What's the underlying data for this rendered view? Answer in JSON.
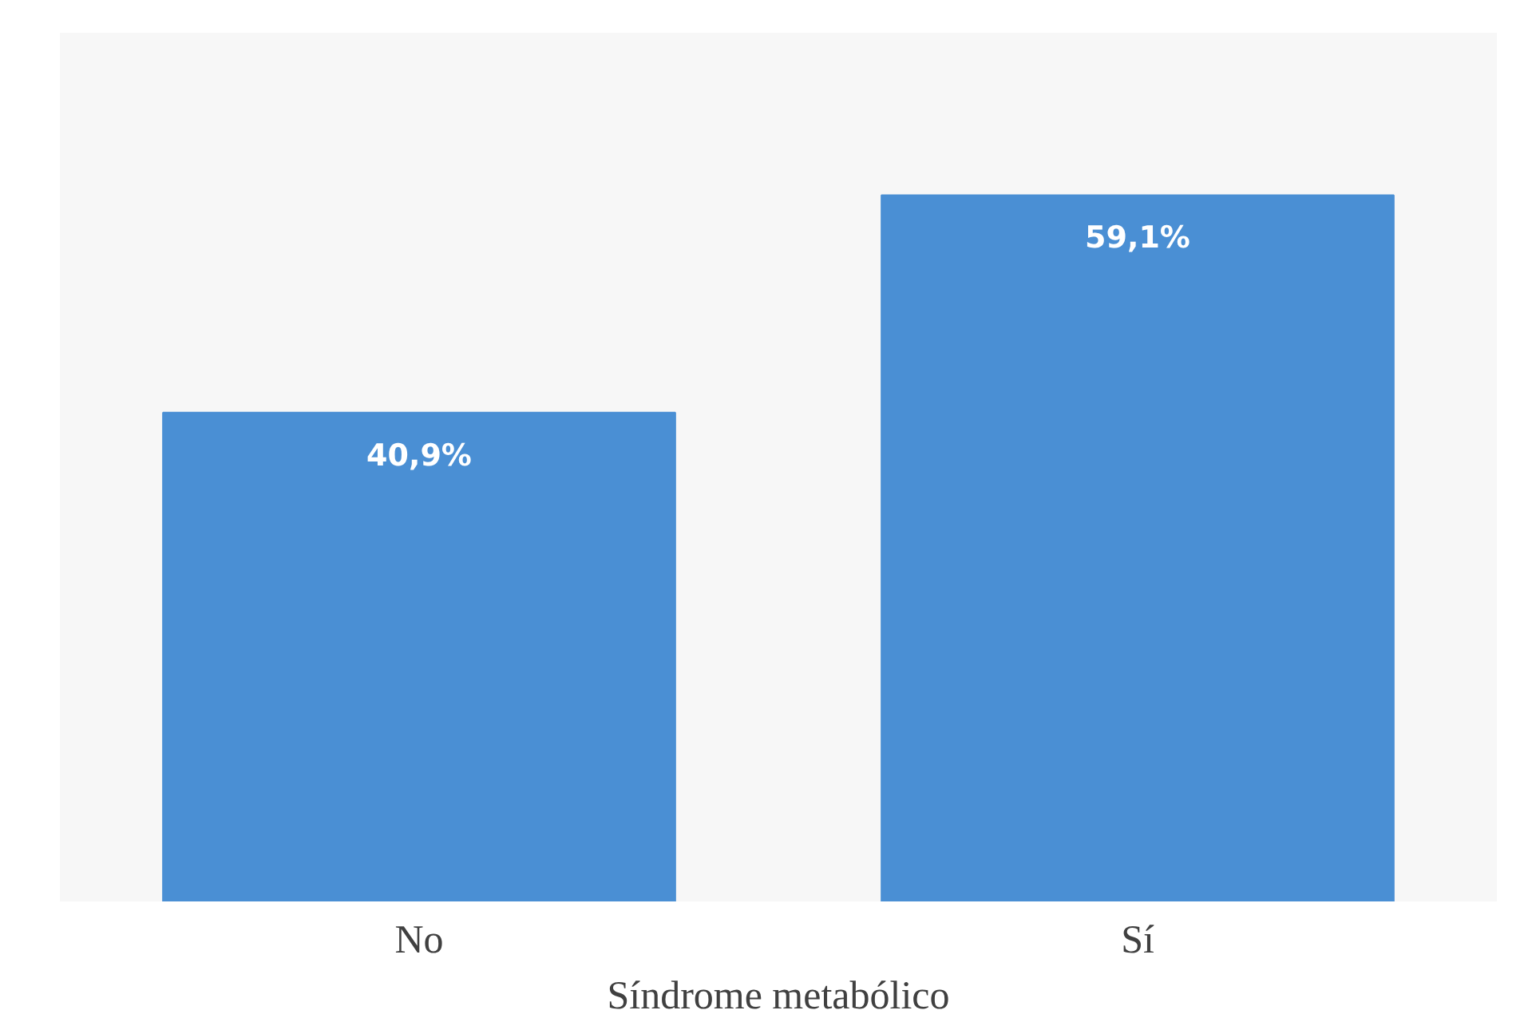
{
  "chart_data": {
    "type": "bar",
    "xlabel": "Síndrome metabólico",
    "categories": [
      "No",
      "Sí"
    ],
    "values": [
      40.9,
      59.1
    ],
    "color": "#4a8fd4",
    "value_labels": [
      "40,9%",
      "59,1%"
    ]
  }
}
